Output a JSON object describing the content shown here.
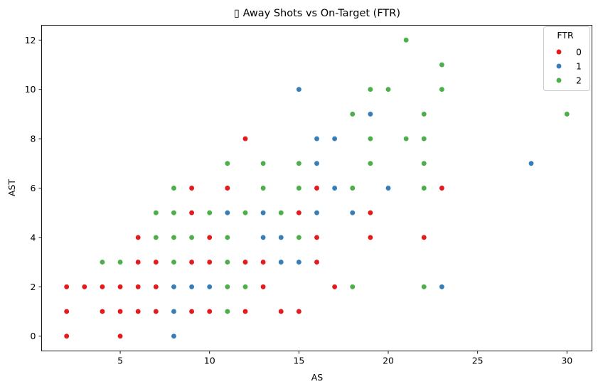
{
  "chart_data": {
    "type": "scatter",
    "title": "▯ Away Shots vs On-Target (FTR)",
    "xlabel": "AS",
    "ylabel": "AST",
    "xlim": [
      0.6,
      31.4
    ],
    "ylim": [
      -0.6,
      12.6
    ],
    "xticks": [
      5,
      10,
      15,
      20,
      25,
      30
    ],
    "yticks": [
      0,
      2,
      4,
      6,
      8,
      10,
      12
    ],
    "grid": false,
    "legend": {
      "title": "FTR",
      "placement": "top-right"
    },
    "series": [
      {
        "name": "0",
        "color": "#e41a1c",
        "points": [
          [
            2,
            0
          ],
          [
            2,
            1
          ],
          [
            2,
            2
          ],
          [
            3,
            2
          ],
          [
            4,
            1
          ],
          [
            4,
            2
          ],
          [
            5,
            0
          ],
          [
            5,
            1
          ],
          [
            5,
            2
          ],
          [
            6,
            1
          ],
          [
            6,
            2
          ],
          [
            6,
            3
          ],
          [
            6,
            4
          ],
          [
            7,
            1
          ],
          [
            7,
            2
          ],
          [
            7,
            3
          ],
          [
            9,
            1
          ],
          [
            9,
            3
          ],
          [
            9,
            5
          ],
          [
            9,
            6
          ],
          [
            10,
            1
          ],
          [
            10,
            3
          ],
          [
            10,
            4
          ],
          [
            11,
            6
          ],
          [
            12,
            1
          ],
          [
            12,
            3
          ],
          [
            12,
            8
          ],
          [
            13,
            2
          ],
          [
            13,
            3
          ],
          [
            14,
            1
          ],
          [
            15,
            1
          ],
          [
            15,
            5
          ],
          [
            16,
            3
          ],
          [
            16,
            4
          ],
          [
            16,
            6
          ],
          [
            17,
            2
          ],
          [
            19,
            4
          ],
          [
            19,
            5
          ],
          [
            22,
            4
          ],
          [
            23,
            6
          ]
        ]
      },
      {
        "name": "1",
        "color": "#377eb8",
        "points": [
          [
            8,
            0
          ],
          [
            8,
            1
          ],
          [
            8,
            2
          ],
          [
            9,
            2
          ],
          [
            10,
            2
          ],
          [
            11,
            5
          ],
          [
            13,
            4
          ],
          [
            13,
            5
          ],
          [
            14,
            3
          ],
          [
            14,
            4
          ],
          [
            15,
            3
          ],
          [
            15,
            10
          ],
          [
            16,
            5
          ],
          [
            16,
            7
          ],
          [
            16,
            8
          ],
          [
            17,
            6
          ],
          [
            17,
            8
          ],
          [
            18,
            5
          ],
          [
            19,
            9
          ],
          [
            20,
            6
          ],
          [
            23,
            2
          ],
          [
            28,
            7
          ]
        ]
      },
      {
        "name": "2",
        "color": "#4daf4a",
        "points": [
          [
            4,
            3
          ],
          [
            5,
            3
          ],
          [
            7,
            4
          ],
          [
            7,
            5
          ],
          [
            8,
            3
          ],
          [
            8,
            4
          ],
          [
            8,
            5
          ],
          [
            8,
            6
          ],
          [
            9,
            4
          ],
          [
            10,
            5
          ],
          [
            11,
            1
          ],
          [
            11,
            2
          ],
          [
            11,
            3
          ],
          [
            11,
            4
          ],
          [
            11,
            7
          ],
          [
            12,
            2
          ],
          [
            12,
            5
          ],
          [
            13,
            6
          ],
          [
            13,
            7
          ],
          [
            14,
            5
          ],
          [
            15,
            4
          ],
          [
            15,
            6
          ],
          [
            15,
            7
          ],
          [
            18,
            2
          ],
          [
            18,
            6
          ],
          [
            18,
            9
          ],
          [
            19,
            7
          ],
          [
            19,
            8
          ],
          [
            19,
            10
          ],
          [
            20,
            10
          ],
          [
            21,
            8
          ],
          [
            21,
            12
          ],
          [
            22,
            2
          ],
          [
            22,
            6
          ],
          [
            22,
            7
          ],
          [
            22,
            8
          ],
          [
            22,
            9
          ],
          [
            23,
            10
          ],
          [
            23,
            11
          ],
          [
            30,
            9
          ]
        ]
      }
    ]
  }
}
